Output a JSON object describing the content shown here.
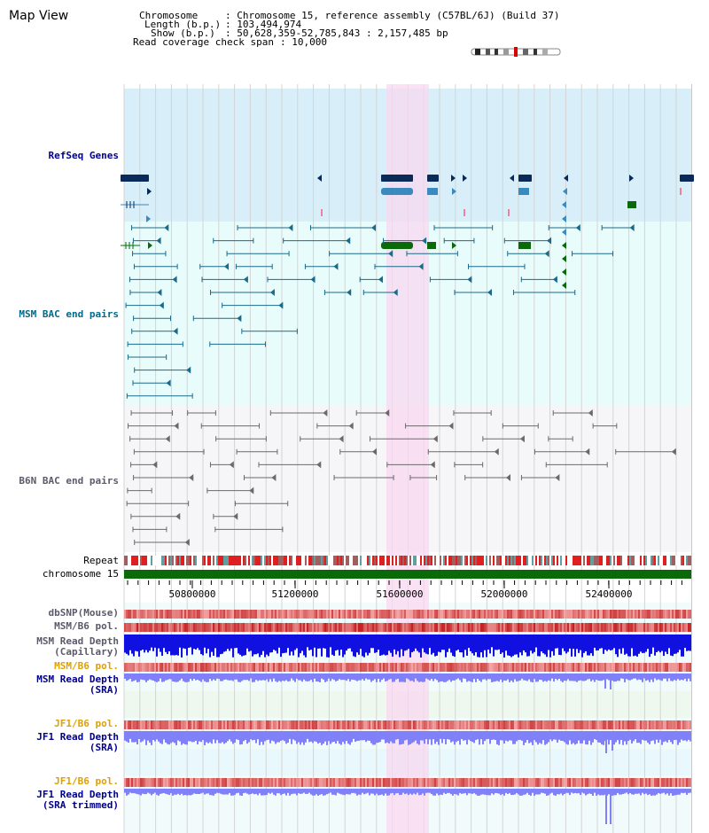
{
  "header": {
    "page_title": "Map View",
    "chromosome_label": "Chromosome",
    "chromosome_value": ": Chromosome 15, reference assembly (C57BL/6J) (Build 37)",
    "length_label": "Length (b.p.)",
    "length_value": ": 103,494,974",
    "show_label": "Show (b.p.)",
    "show_value": ": 50,628,359-52,785,843 : 2,157,485 bp",
    "read_coverage_label": "Read coverage check span",
    "read_coverage_value": ": 10,000"
  },
  "tracks": {
    "refseq": "RefSeq Genes",
    "msm_bac": "MSM BAC end pairs",
    "b6n_bac": "B6N BAC end pairs",
    "repeat": "Repeat",
    "chromosome": "chromosome 15",
    "dbsnp": "dbSNP(Mouse)",
    "msm_b6_pol": "MSM/B6 pol.",
    "msm_read_depth_cap_1": "MSM Read Depth",
    "msm_read_depth_cap_2": "(Capillary)",
    "msm_b6_pol_2": "MSM/B6 pol.",
    "msm_read_depth_sra_1": "MSM Read Depth",
    "msm_read_depth_sra_2": "(SRA)",
    "jf1_b6_pol": "JF1/B6 pol.",
    "jf1_read_depth_sra_1": "JF1 Read Depth",
    "jf1_read_depth_sra_2": "(SRA)",
    "jf1_b6_pol_2": "JF1/B6 pol.",
    "jf1_read_depth_trim_1": "JF1 Read Depth",
    "jf1_read_depth_trim_2": "(SRA trimmed)"
  },
  "axis": {
    "ticks": [
      "50800000",
      "51200000",
      "51600000",
      "52000000",
      "52400000"
    ]
  },
  "colors": {
    "refseq_bg": "#d8eef8",
    "msm_bg": "#e8fcfc",
    "b6n_bg": "#f6f6f8",
    "highlight": "#f8d8f0",
    "gene_dark": "#0a2a5a",
    "gene_mid": "#3a8abf",
    "gene_green": "#0a6a0a",
    "msm_feature": "#1a6a8a",
    "b6n_feature": "#6a6a6a",
    "chromosome_bar": "#0a6a0a",
    "depth_cap": "#1010e0",
    "depth_sra": "#8080f8",
    "label_blue": "#00008b",
    "label_teal": "#006a8a",
    "label_gray": "#5a5a6a",
    "label_orange": "#e0a000"
  }
}
